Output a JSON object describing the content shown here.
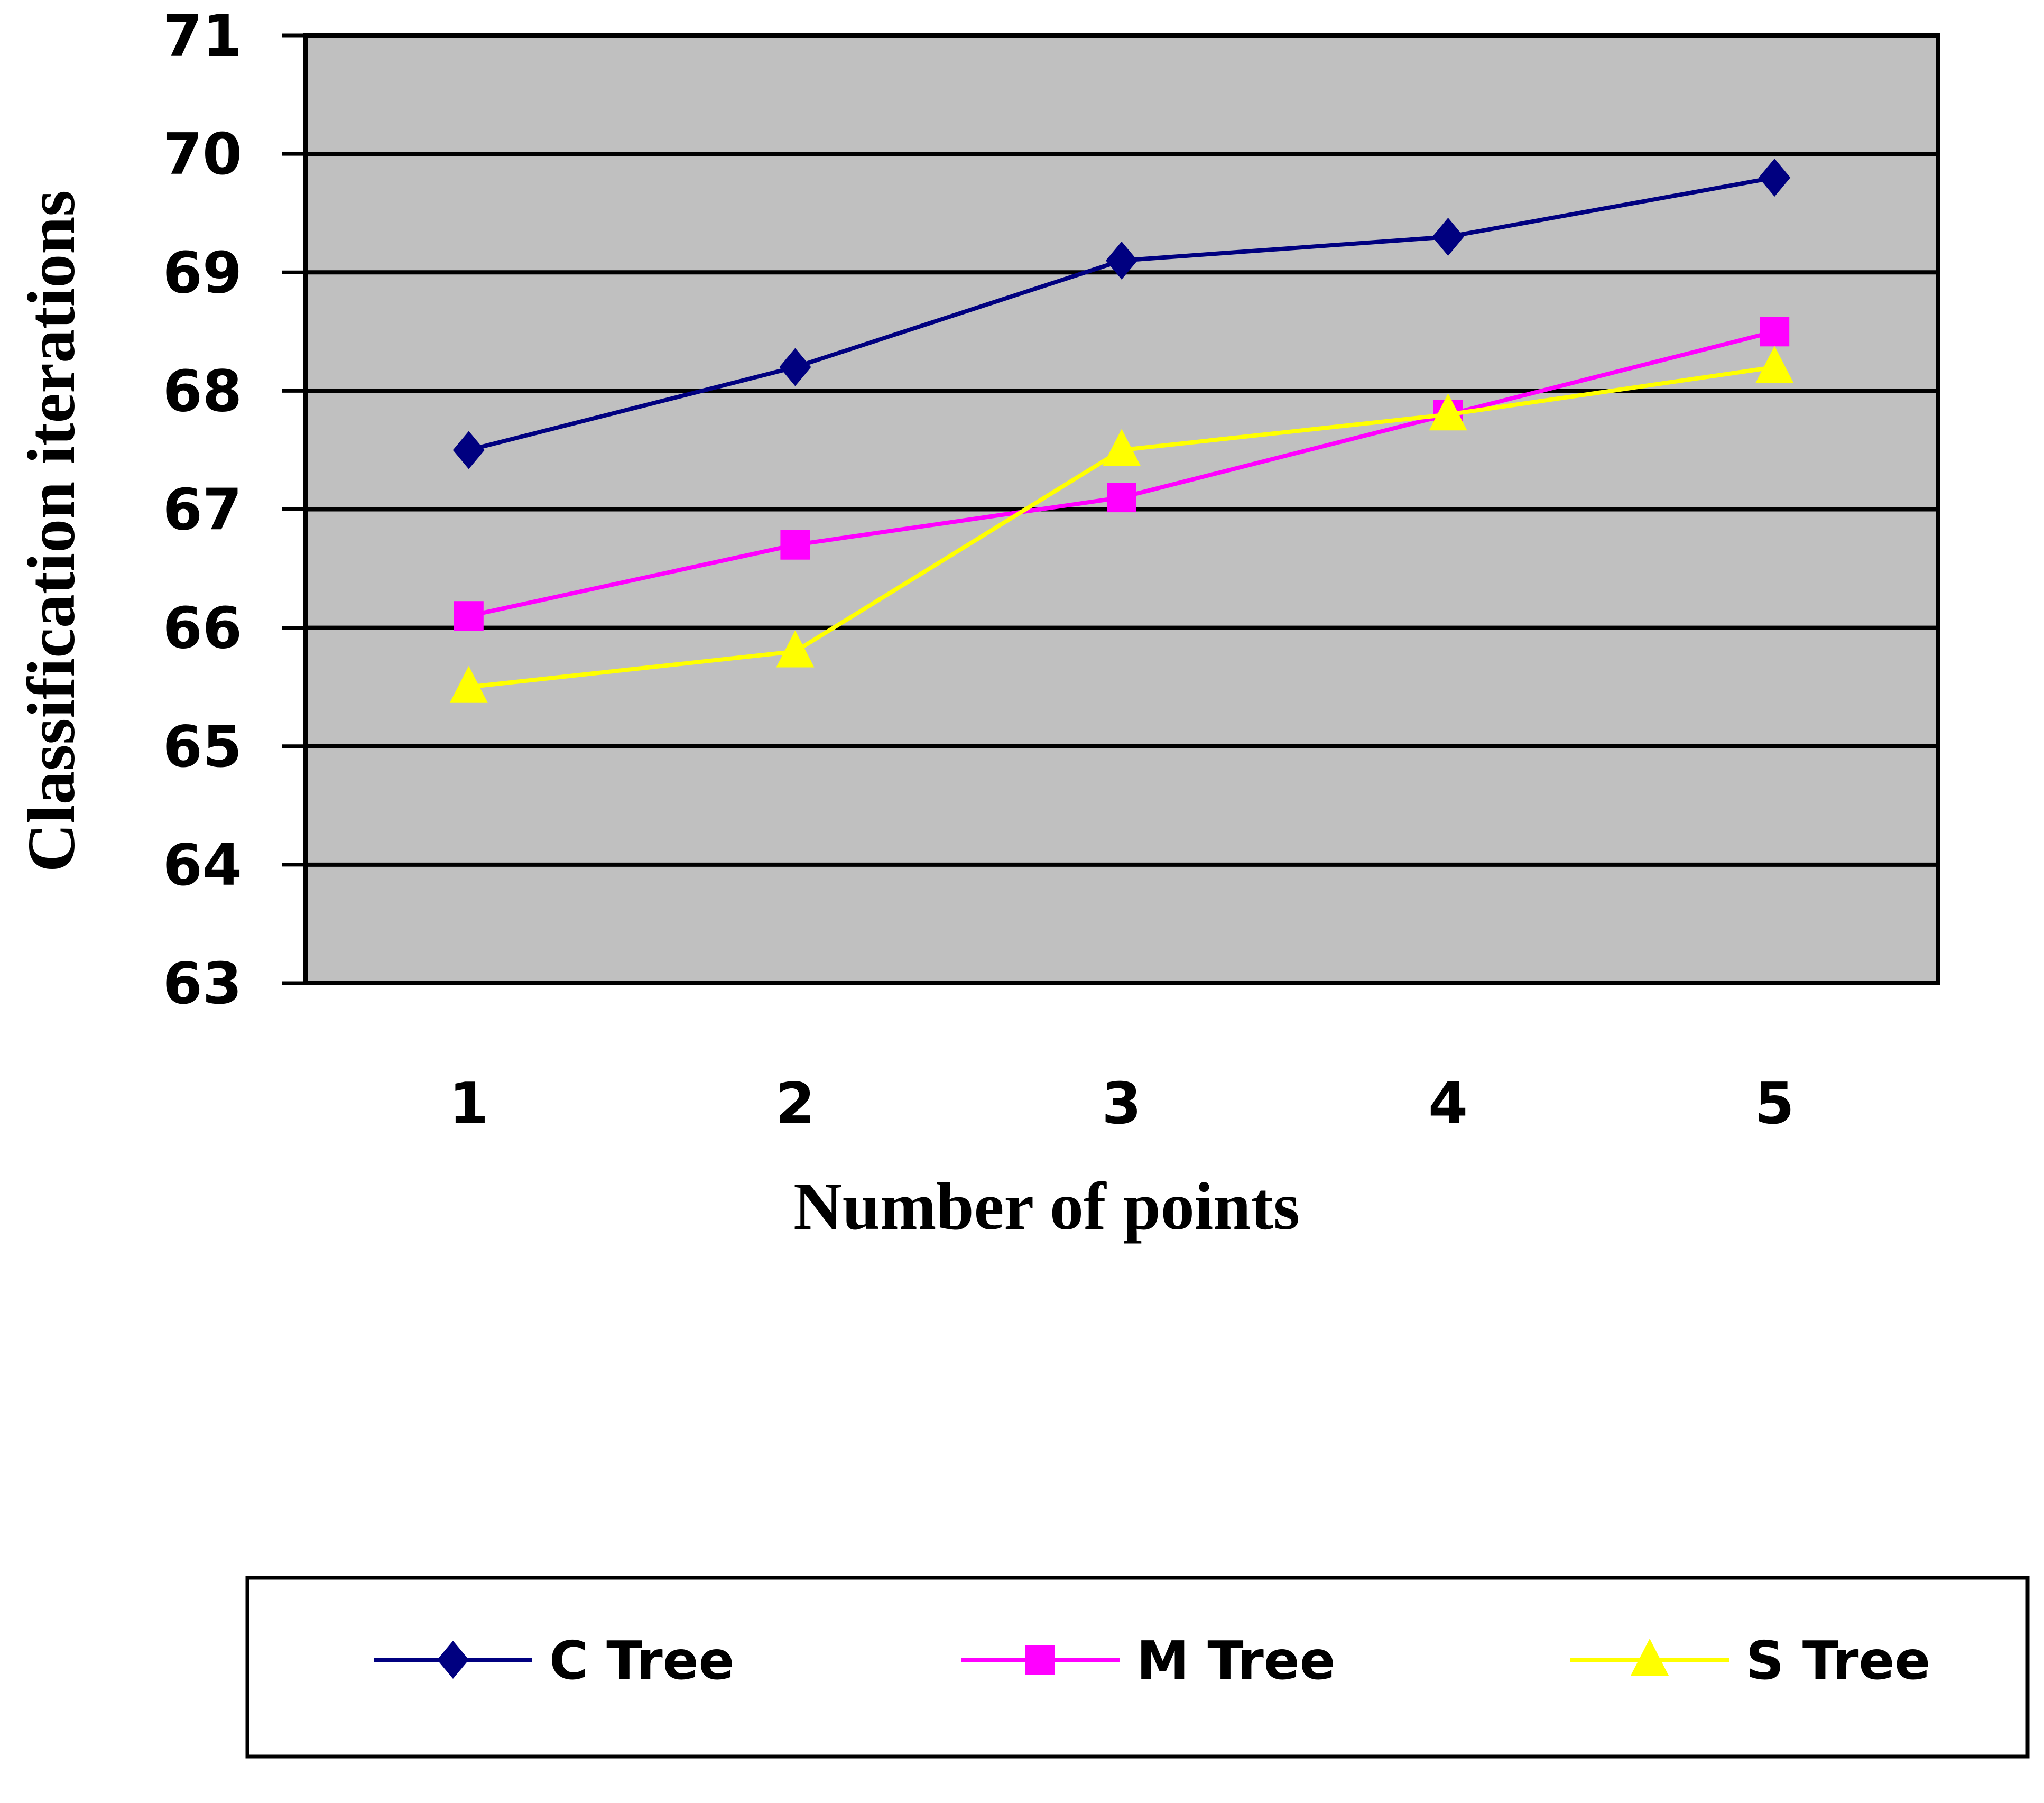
{
  "chart_data": {
    "type": "line",
    "title": "",
    "xlabel": "Number of points",
    "ylabel": "Classification iterations",
    "categories": [
      "1",
      "2",
      "3",
      "4",
      "5"
    ],
    "ylim": [
      63,
      71
    ],
    "yticks": [
      "63",
      "64",
      "65",
      "66",
      "67",
      "68",
      "69",
      "70",
      "71"
    ],
    "grid": true,
    "legend_position": "bottom",
    "series": [
      {
        "name": "C Tree",
        "color": "#000080",
        "marker": "diamond",
        "values": [
          67.5,
          68.2,
          69.1,
          69.3,
          69.8
        ]
      },
      {
        "name": "M Tree",
        "color": "#FF00FF",
        "marker": "square",
        "values": [
          66.1,
          66.7,
          67.1,
          67.8,
          68.5
        ]
      },
      {
        "name": "S Tree",
        "color": "#FFFF00",
        "marker": "triangle",
        "values": [
          65.5,
          65.8,
          67.5,
          67.8,
          68.2
        ]
      }
    ],
    "plot_background": "#C0C0C0"
  }
}
